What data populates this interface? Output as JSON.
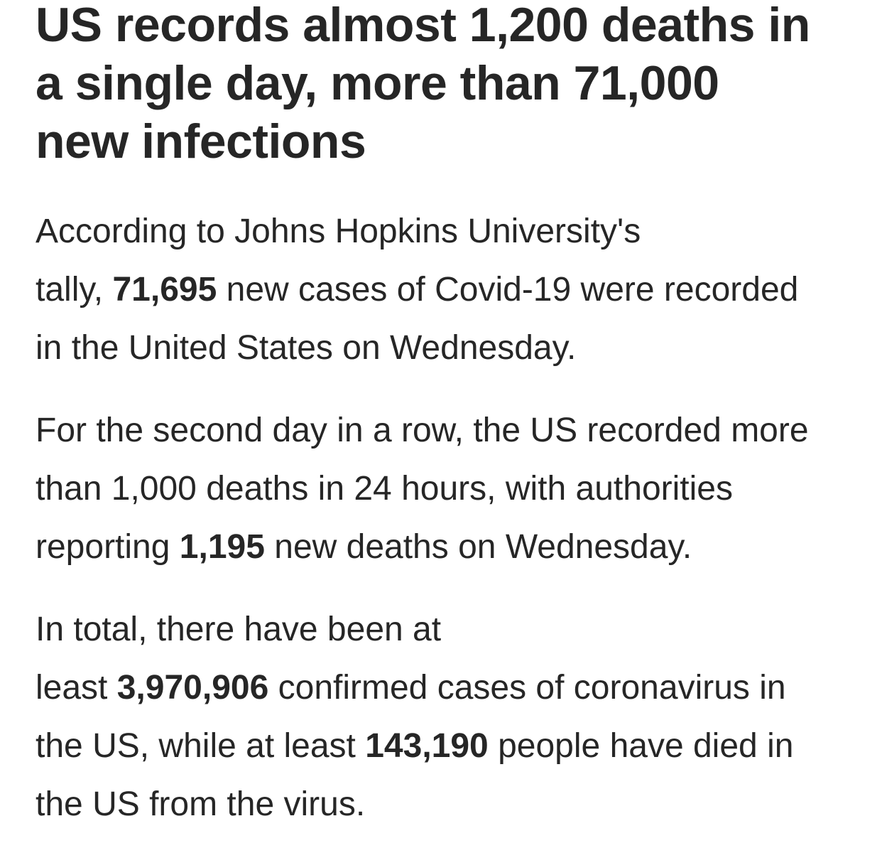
{
  "page": {
    "background_color": "#ffffff",
    "text_color": "#262626"
  },
  "article": {
    "headline": {
      "text": "US records almost 1,200 deaths in a single day, more than 71,000 new infections",
      "lines": [
        "US records almost 1,200 deaths in",
        "a single day, more than 71,000",
        "new infections"
      ]
    },
    "paragraphs": [
      {
        "lines": [
          [
            {
              "text": "According to Johns Hopkins University's"
            }
          ],
          [
            {
              "text": "tally, "
            },
            {
              "text": "71,695",
              "bold": true
            },
            {
              "text": " new cases of Covid-19 were recorded"
            }
          ],
          [
            {
              "text": "in the United States on Wednesday."
            }
          ]
        ]
      },
      {
        "lines": [
          [
            {
              "text": "For the second day in a row, the US recorded more"
            }
          ],
          [
            {
              "text": "than 1,000 deaths in 24 hours, with authorities"
            }
          ],
          [
            {
              "text": "reporting "
            },
            {
              "text": "1,195",
              "bold": true
            },
            {
              "text": " new deaths on Wednesday."
            }
          ]
        ]
      },
      {
        "lines": [
          [
            {
              "text": "In total, there have been at"
            }
          ],
          [
            {
              "text": "least "
            },
            {
              "text": "3,970,906",
              "bold": true
            },
            {
              "text": " confirmed cases of coronavirus in"
            }
          ],
          [
            {
              "text": "the US, while at least "
            },
            {
              "text": "143,190",
              "bold": true
            },
            {
              "text": " people have died in"
            }
          ],
          [
            {
              "text": "the US from the virus."
            }
          ]
        ]
      }
    ]
  }
}
